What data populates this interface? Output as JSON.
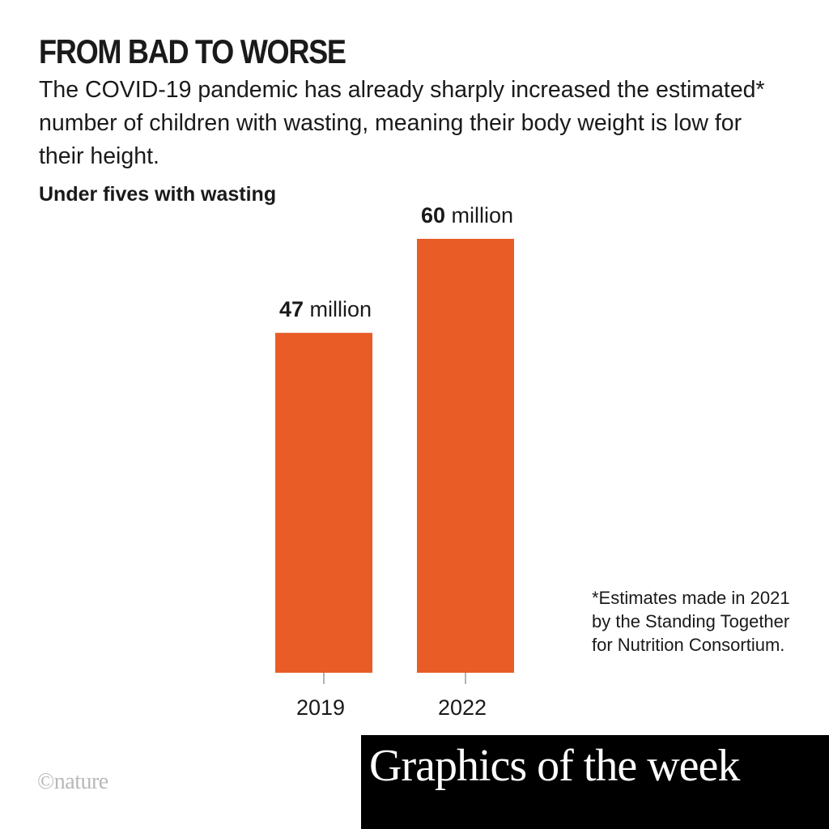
{
  "headline": "FROM BAD TO WORSE",
  "subtitle": "The COVID-19 pandemic has already sharply increased the estimated* number of children with wasting, meaning their body weight is low for their height.",
  "footnote": "*Estimates made in 2021 by the Standing Together for Nutrition Consortium.",
  "brand": "©nature",
  "banner": "Graphics of the week",
  "colors": {
    "bar": "#e95c26",
    "text": "#1a1a1a",
    "axis": "#999999"
  },
  "chart_data": {
    "type": "bar",
    "title": "Under fives with wasting",
    "categories": [
      "2019",
      "2022"
    ],
    "values": [
      47,
      60
    ],
    "value_labels": [
      {
        "number": "47",
        "unit": " million"
      },
      {
        "number": "60",
        "unit": " million"
      }
    ],
    "unit": "million",
    "xlabel": "",
    "ylabel": "",
    "ylim": [
      0,
      60
    ],
    "grid": false,
    "legend": "none"
  }
}
